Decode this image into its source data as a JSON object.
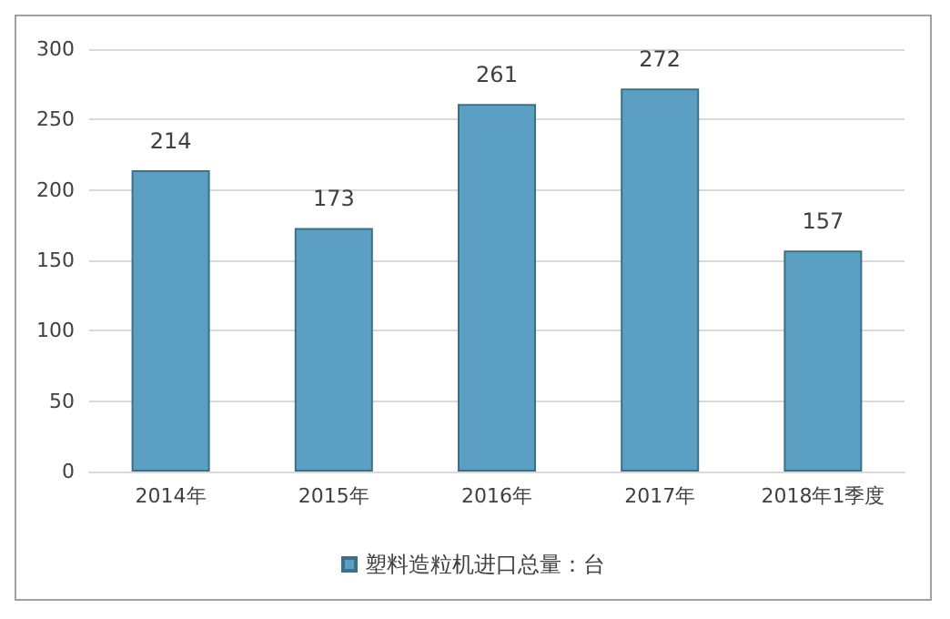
{
  "chart_data": {
    "type": "bar",
    "categories": [
      "2014年",
      "2015年",
      "2016年",
      "2017年",
      "2018年1季度"
    ],
    "series": [
      {
        "name": "塑料造粒机进口总量：台",
        "color": "#5b9fc2",
        "values": [
          214,
          173,
          261,
          272,
          157
        ]
      }
    ],
    "ylim": [
      0,
      300
    ],
    "yticks": [
      0,
      50,
      100,
      150,
      200,
      250,
      300
    ],
    "grid": "y",
    "legend": "bottom",
    "data_labels": true
  }
}
